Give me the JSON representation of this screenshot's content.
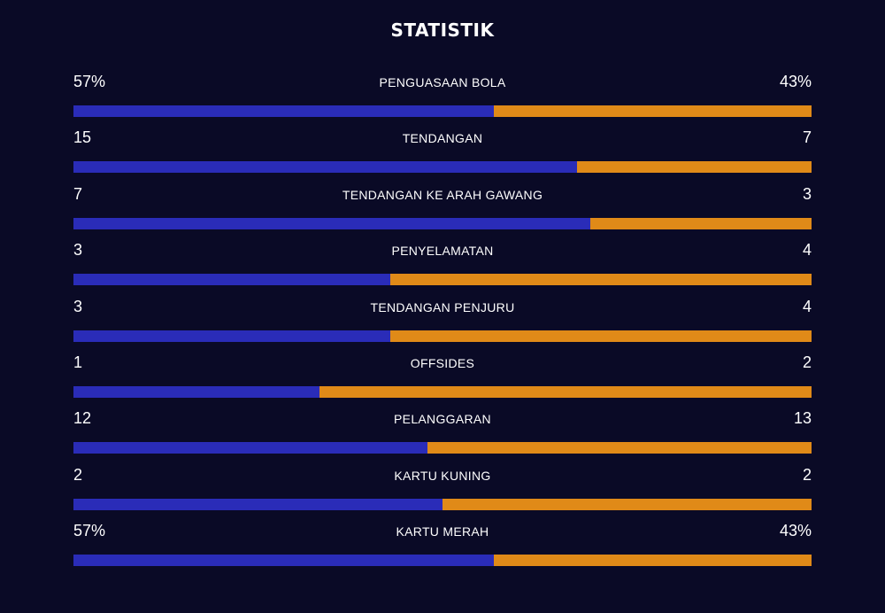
{
  "title": "STATISTIK",
  "colors": {
    "background": "#0a0a26",
    "home": "#2a2cb8",
    "away": "#e08a18"
  },
  "stats": [
    {
      "label": "PENGUASAAN BOLA",
      "home": "57%",
      "away": "43%",
      "home_share": 0.57
    },
    {
      "label": "TENDANGAN",
      "home": "15",
      "away": "7",
      "home_share": 0.682
    },
    {
      "label": "TENDANGAN KE ARAH GAWANG",
      "home": "7",
      "away": "3",
      "home_share": 0.7
    },
    {
      "label": "PENYELAMATAN",
      "home": "3",
      "away": "4",
      "home_share": 0.429
    },
    {
      "label": "TENDANGAN PENJURU",
      "home": "3",
      "away": "4",
      "home_share": 0.429
    },
    {
      "label": "OFFSIDES",
      "home": "1",
      "away": "2",
      "home_share": 0.333
    },
    {
      "label": "PELANGGARAN",
      "home": "12",
      "away": "13",
      "home_share": 0.48
    },
    {
      "label": "KARTU KUNING",
      "home": "2",
      "away": "2",
      "home_share": 0.5
    },
    {
      "label": "KARTU MERAH",
      "home": "57%",
      "away": "43%",
      "home_share": 0.57
    }
  ]
}
